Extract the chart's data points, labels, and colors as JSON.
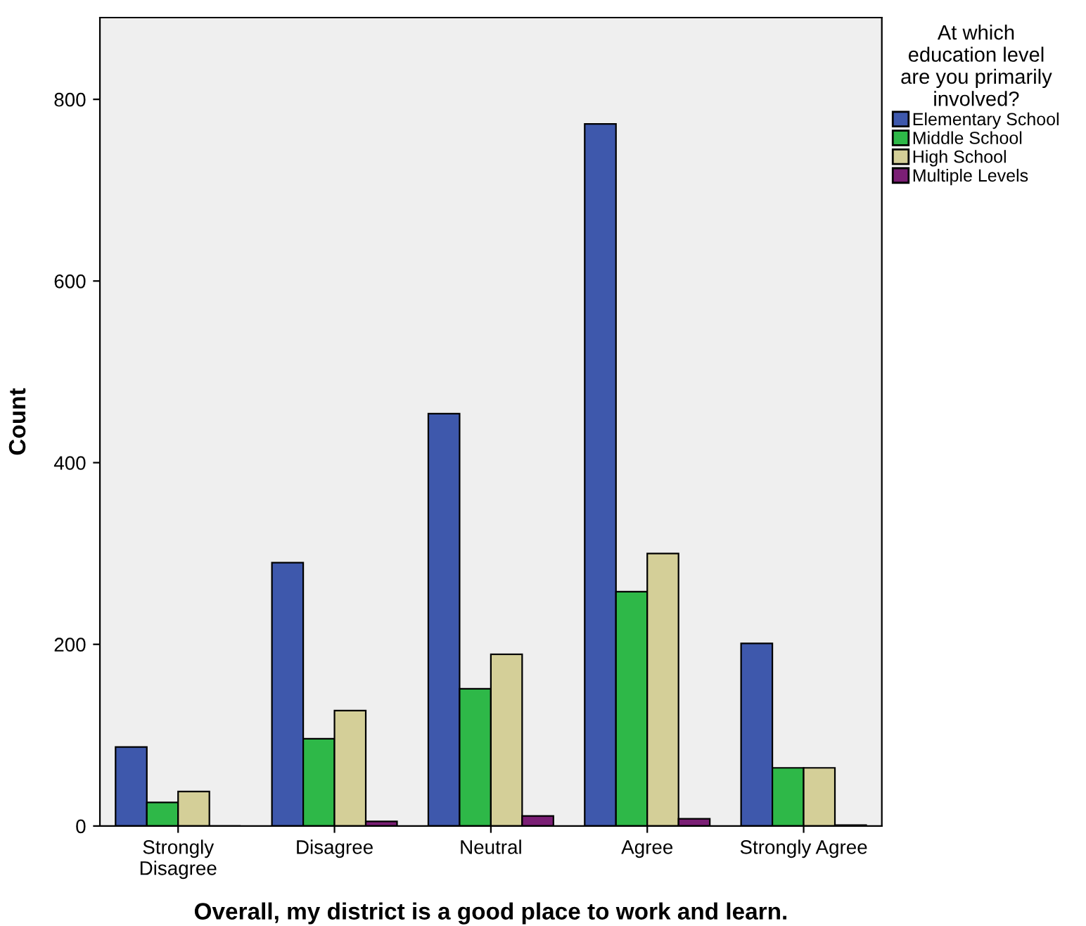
{
  "chart_data": {
    "type": "bar",
    "xlabel": "Overall, my district is a good place to work and learn.",
    "ylabel": "Count",
    "legend_title": "At which\neducation level\nare you primarily\ninvolved?",
    "categories": [
      "Strongly\nDisagree",
      "Disagree",
      "Neutral",
      "Agree",
      "Strongly Agree"
    ],
    "series": [
      {
        "name": "Elementary School",
        "color": "#3e58ac",
        "values": [
          87,
          290,
          454,
          773,
          201
        ]
      },
      {
        "name": "Middle School",
        "color": "#2eb848",
        "values": [
          26,
          96,
          151,
          258,
          64
        ]
      },
      {
        "name": "High School",
        "color": "#d4cf98",
        "values": [
          38,
          127,
          189,
          300,
          64
        ]
      },
      {
        "name": "Multiple Levels",
        "color": "#7b1f75",
        "values": [
          0,
          5,
          11,
          8,
          1
        ]
      }
    ],
    "ylim": [
      0,
      890
    ],
    "yticks": [
      0,
      200,
      400,
      600,
      800
    ],
    "grid": false,
    "legend": "top right"
  }
}
